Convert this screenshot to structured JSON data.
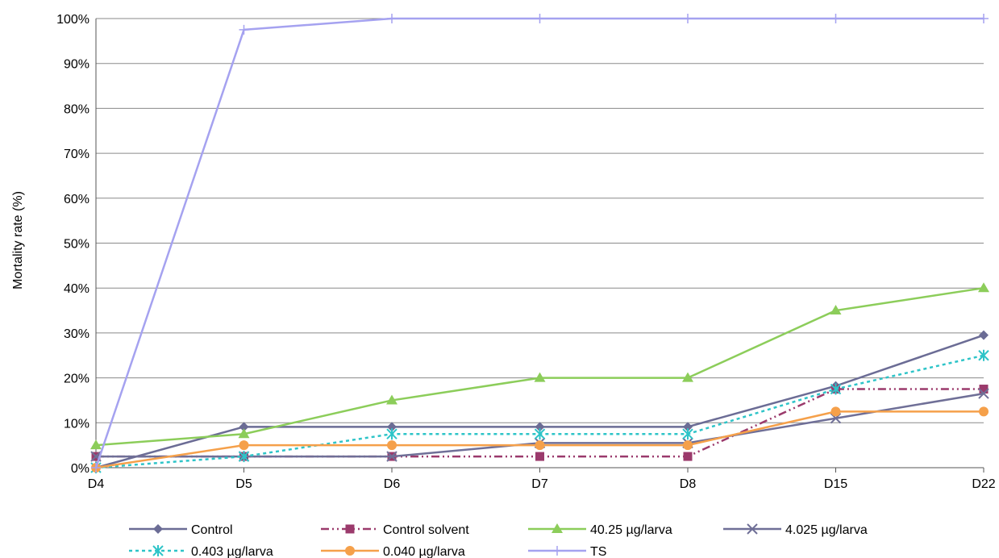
{
  "chart_data": {
    "type": "line",
    "title": "",
    "xlabel": "",
    "ylabel": "Mortality rate (%)",
    "categories": [
      "D4",
      "D5",
      "D6",
      "D7",
      "D8",
      "D15",
      "D22"
    ],
    "y_ticks": [
      "0%",
      "10%",
      "20%",
      "30%",
      "40%",
      "50%",
      "60%",
      "70%",
      "80%",
      "90%",
      "100%"
    ],
    "ylim": [
      0,
      100
    ],
    "grid": "horizontal",
    "legend_position": "bottom",
    "series": [
      {
        "name": "Control",
        "color": "#6b6c95",
        "marker": "diamond",
        "dash": "solid",
        "values": [
          0,
          9.1,
          9.1,
          9.1,
          9.1,
          18.2,
          29.5
        ]
      },
      {
        "name": "Control solvent",
        "color": "#9b3a6c",
        "marker": "square",
        "dash": "dashdotdot",
        "values": [
          2.5,
          2.5,
          2.5,
          2.5,
          2.5,
          17.5,
          17.5
        ]
      },
      {
        "name": "40.25 µg/larva",
        "color": "#8ccd5a",
        "marker": "triangle",
        "dash": "solid",
        "values": [
          5,
          7.5,
          15,
          20,
          20,
          35,
          40
        ]
      },
      {
        "name": "4.025 µg/larva",
        "color": "#6f6f97",
        "marker": "x",
        "dash": "solid",
        "values": [
          2.5,
          2.5,
          2.5,
          5.5,
          5.5,
          11,
          16.5
        ]
      },
      {
        "name": "0.403 µg/larva",
        "color": "#2ec4c8",
        "marker": "asterisk",
        "dash": "dotted",
        "values": [
          0,
          2.5,
          7.5,
          7.5,
          7.5,
          17.5,
          25
        ]
      },
      {
        "name": "0.040 µg/larva",
        "color": "#f5a04a",
        "marker": "circle",
        "dash": "solid",
        "values": [
          0,
          5,
          5,
          5,
          5,
          12.5,
          12.5
        ]
      },
      {
        "name": "TS",
        "color": "#a5a2f0",
        "marker": "plus",
        "dash": "solid",
        "values": [
          0,
          97.5,
          100,
          100,
          100,
          100,
          100
        ]
      }
    ]
  }
}
